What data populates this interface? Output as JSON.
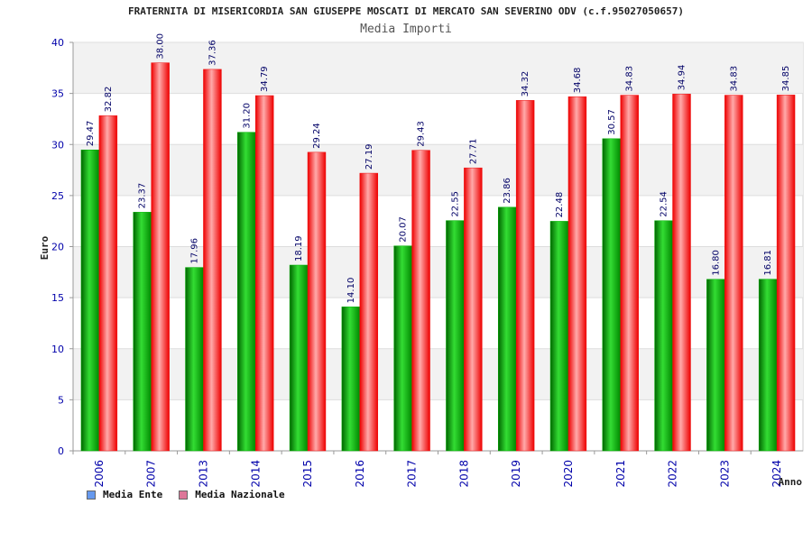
{
  "chart_data": {
    "type": "bar",
    "title": "FRATERNITA DI MISERICORDIA SAN GIUSEPPE MOSCATI DI MERCATO SAN SEVERINO ODV (c.f.95027050657)",
    "subtitle": "Media Importi",
    "xlabel": "Anno",
    "ylabel": "Euro",
    "ylim": [
      0,
      40
    ],
    "yticks": [
      "0",
      "5",
      "10",
      "15",
      "20",
      "25",
      "30",
      "35",
      "40"
    ],
    "grid": true,
    "legend_position": "bottom-left",
    "categories": [
      "2006",
      "2007",
      "2013",
      "2014",
      "2015",
      "2016",
      "2017",
      "2018",
      "2019",
      "2020",
      "2021",
      "2022",
      "2023",
      "2024"
    ],
    "series": [
      {
        "name": "Media Ente",
        "values": [
          29.47,
          23.37,
          17.96,
          31.2,
          18.19,
          14.1,
          20.07,
          22.55,
          23.86,
          22.48,
          30.57,
          22.54,
          16.8,
          16.81
        ],
        "labels": [
          "29.47",
          "23.37",
          "17.96",
          "31.20",
          "18.19",
          "14.10",
          "20.07",
          "22.55",
          "23.86",
          "22.48",
          "30.57",
          "22.54",
          "16.80",
          "16.81"
        ]
      },
      {
        "name": "Media Nazionale",
        "values": [
          32.82,
          38.0,
          37.36,
          34.79,
          29.24,
          27.19,
          29.43,
          27.71,
          34.32,
          34.68,
          34.83,
          34.94,
          34.83,
          34.85
        ],
        "labels": [
          "32.82",
          "38.00",
          "37.36",
          "34.79",
          "29.24",
          "27.19",
          "29.43",
          "27.71",
          "34.32",
          "34.68",
          "34.83",
          "34.94",
          "34.83",
          "34.85"
        ]
      }
    ],
    "colors": {
      "ente_bar": "#00b000",
      "nazionale_bar": "#ee1111",
      "legend_ente": "#6699ee",
      "legend_nazionale": "#dd7799",
      "band": "#f2f2f2"
    }
  }
}
